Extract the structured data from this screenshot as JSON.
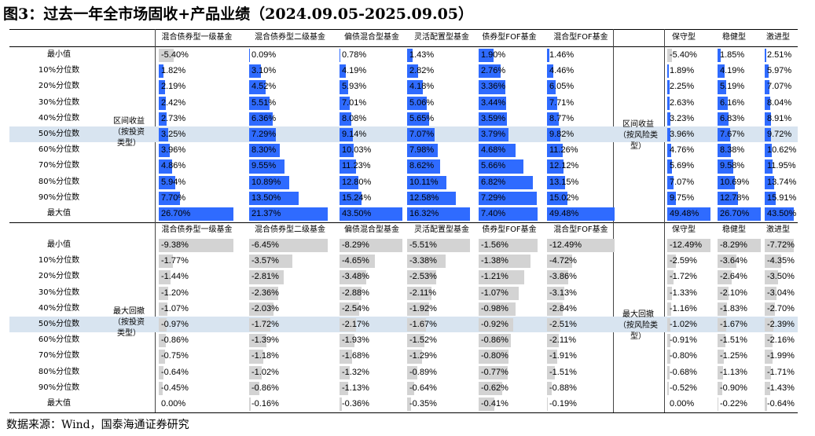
{
  "title": "图3：过去一年全市场固收+产品业绩（2024.09.05-2025.09.05）",
  "source": "数据来源：Wind，国泰海通证券研究",
  "colors": {
    "positive_bar": "#2f6bff",
    "negative_bar": "#d3d3d3",
    "highlight_row": "#d8e4f0"
  },
  "row_labels": [
    "最小值",
    "10%分位数",
    "20%分位数",
    "30%分位数",
    "40%分位数",
    "50%分位数",
    "60%分位数",
    "70%分位数",
    "80%分位数",
    "90%分位数",
    "最大值"
  ],
  "left_headers": [
    "混合债券型一级基金",
    "混合债券型二级基金",
    "偏债混合型基金",
    "灵活配置型基金",
    "债券型FOF基金",
    "混合型FOF基金"
  ],
  "right_headers": [
    "保守型",
    "稳健型",
    "激进型"
  ],
  "return_section": {
    "left_group_label": "区间收益（按投资类型）",
    "right_group_label": "区间收益（按风险类型）",
    "left": [
      [
        "-5.40%",
        "1.82%",
        "2.19%",
        "2.42%",
        "2.73%",
        "3.25%",
        "3.96%",
        "4.86%",
        "5.94%",
        "7.70%",
        "26.70%"
      ],
      [
        "0.09%",
        "3.10%",
        "4.52%",
        "5.51%",
        "6.36%",
        "7.29%",
        "8.30%",
        "9.55%",
        "10.89%",
        "13.50%",
        "21.37%"
      ],
      [
        "0.78%",
        "4.19%",
        "5.93%",
        "7.01%",
        "8.08%",
        "9.14%",
        "10.03%",
        "11.23%",
        "12.80%",
        "15.24%",
        "43.50%"
      ],
      [
        "1.43%",
        "2.82%",
        "4.18%",
        "5.06%",
        "5.65%",
        "7.07%",
        "7.98%",
        "8.62%",
        "10.11%",
        "12.58%",
        "16.32%"
      ],
      [
        "1.90%",
        "2.76%",
        "3.36%",
        "3.44%",
        "3.59%",
        "3.79%",
        "4.68%",
        "5.66%",
        "6.82%",
        "7.29%",
        "7.40%"
      ],
      [
        "1.46%",
        "4.46%",
        "6.05%",
        "7.71%",
        "8.77%",
        "9.82%",
        "11.26%",
        "12.12%",
        "13.15%",
        "15.02%",
        "49.48%"
      ]
    ],
    "right": [
      [
        "-5.40%",
        "1.89%",
        "2.25%",
        "2.63%",
        "3.23%",
        "3.96%",
        "4.76%",
        "5.69%",
        "7.07%",
        "9.75%",
        "49.48%"
      ],
      [
        "1.85%",
        "4.19%",
        "5.19%",
        "6.16%",
        "6.83%",
        "7.67%",
        "8.38%",
        "9.58%",
        "10.69%",
        "12.78%",
        "26.70%"
      ],
      [
        "2.51%",
        "5.97%",
        "7.07%",
        "8.04%",
        "8.91%",
        "9.72%",
        "10.62%",
        "11.95%",
        "13.74%",
        "15.91%",
        "43.50%"
      ]
    ]
  },
  "drawdown_section": {
    "left_group_label": "最大回撤（按投资类型）",
    "right_group_label": "最大回撤（按风险类型）",
    "left": [
      [
        "-9.38%",
        "-1.77%",
        "-1.44%",
        "-1.20%",
        "-1.07%",
        "-0.97%",
        "-0.86%",
        "-0.75%",
        "-0.64%",
        "-0.45%",
        "0.00%"
      ],
      [
        "-6.45%",
        "-3.57%",
        "-2.81%",
        "-2.36%",
        "-2.03%",
        "-1.72%",
        "-1.39%",
        "-1.18%",
        "-1.02%",
        "-0.86%",
        "-0.16%"
      ],
      [
        "-8.29%",
        "-4.65%",
        "-3.48%",
        "-2.88%",
        "-2.54%",
        "-2.17%",
        "-1.93%",
        "-1.68%",
        "-1.32%",
        "-1.13%",
        "-0.36%"
      ],
      [
        "-5.51%",
        "-3.38%",
        "-2.53%",
        "-2.11%",
        "-1.92%",
        "-1.67%",
        "-1.52%",
        "-1.29%",
        "-0.89%",
        "-0.64%",
        "-0.35%"
      ],
      [
        "-1.56%",
        "-1.38%",
        "-1.21%",
        "-1.07%",
        "-0.98%",
        "-0.92%",
        "-0.86%",
        "-0.80%",
        "-0.77%",
        "-0.62%",
        "-0.41%"
      ],
      [
        "-12.49%",
        "-4.72%",
        "-3.86%",
        "-3.13%",
        "-2.84%",
        "-2.51%",
        "-2.11%",
        "-1.91%",
        "-1.51%",
        "-0.88%",
        "-0.19%"
      ]
    ],
    "right": [
      [
        "-12.49%",
        "-2.59%",
        "-1.72%",
        "-1.33%",
        "-1.16%",
        "-1.02%",
        "-0.91%",
        "-0.80%",
        "-0.68%",
        "-0.52%",
        "0.00%"
      ],
      [
        "-8.29%",
        "-3.64%",
        "-2.64%",
        "-2.10%",
        "-1.83%",
        "-1.67%",
        "-1.51%",
        "-1.25%",
        "-1.13%",
        "-0.90%",
        "-0.22%"
      ],
      [
        "-7.72%",
        "-4.35%",
        "-3.50%",
        "-3.04%",
        "-2.70%",
        "-2.39%",
        "-2.16%",
        "-1.99%",
        "-1.71%",
        "-1.43%",
        "-0.64%"
      ]
    ]
  }
}
